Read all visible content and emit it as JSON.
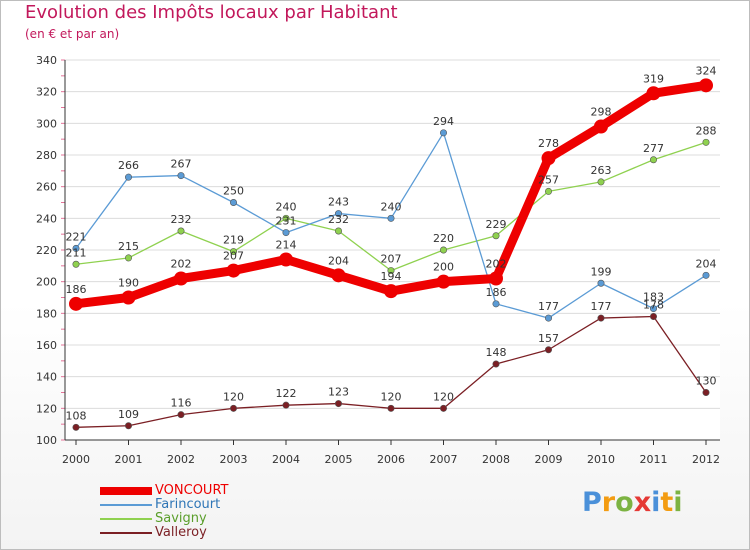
{
  "title": "Evolution des Impôts locaux par Habitant",
  "subtitle": "(en € et par an)",
  "logo": {
    "letters": [
      {
        "ch": "P",
        "color": "#4a90d9"
      },
      {
        "ch": "r",
        "color": "#f39c12"
      },
      {
        "ch": "o",
        "color": "#7cb342"
      },
      {
        "ch": "x",
        "color": "#e53935"
      },
      {
        "ch": "i",
        "color": "#4a90d9"
      },
      {
        "ch": "t",
        "color": "#f39c12"
      },
      {
        "ch": "i",
        "color": "#7cb342"
      }
    ]
  },
  "chart_data": {
    "type": "line",
    "title": "Evolution des Impôts locaux par Habitant",
    "subtitle": "(en € et par an)",
    "xlabel": "",
    "ylabel": "",
    "x": [
      "2000",
      "2001",
      "2002",
      "2003",
      "2004",
      "2005",
      "2006",
      "2007",
      "2008",
      "2009",
      "2010",
      "2011",
      "2012"
    ],
    "ylim": [
      100,
      340
    ],
    "yticks": [
      100,
      120,
      140,
      160,
      180,
      200,
      220,
      240,
      260,
      280,
      300,
      320,
      340
    ],
    "grid": "horizontal",
    "legend": "bottom-left",
    "series": [
      {
        "name": "Valleroy",
        "color": "#7b1f24",
        "values": [
          108,
          109,
          116,
          120,
          122,
          123,
          120,
          120,
          148,
          157,
          177,
          178,
          130
        ]
      },
      {
        "name": "Savigny",
        "color": "#8fd14f",
        "values": [
          211,
          215,
          232,
          219,
          240,
          232,
          207,
          220,
          229,
          257,
          263,
          277,
          288
        ]
      },
      {
        "name": "Farincourt",
        "color": "#5b9bd5",
        "values": [
          221,
          266,
          267,
          250,
          231,
          243,
          240,
          294,
          186,
          177,
          199,
          183,
          204
        ]
      },
      {
        "name": "VONCOURT",
        "color": "#ee0000",
        "values": [
          186,
          190,
          202,
          207,
          214,
          204,
          194,
          200,
          202,
          278,
          298,
          319,
          324
        ]
      }
    ],
    "data_labels": {
      "Valleroy": [
        "108",
        "109",
        "116",
        "120",
        "122",
        "123",
        "120",
        "120",
        "148",
        "157",
        "177",
        "178",
        "130"
      ],
      "Savigny": [
        "211",
        "215",
        "232",
        "219",
        "240",
        "232",
        "207",
        "220",
        "229",
        "257",
        "263",
        "277",
        "288"
      ],
      "Farincourt": [
        "221",
        "266",
        "267",
        "250",
        "231",
        "243",
        "240",
        "294",
        "186",
        "177",
        "199",
        "183",
        "204"
      ],
      "VONCOURT": [
        "186",
        "190",
        "202",
        "207",
        "214",
        "204",
        "194",
        "200",
        "202",
        "278",
        "298",
        "319",
        "324"
      ]
    },
    "legend_entries": [
      {
        "name": "VONCOURT",
        "color": "#ee0000",
        "text_color": "#ee0000"
      },
      {
        "name": "Farincourt",
        "color": "#5b9bd5",
        "text_color": "#2e75b6"
      },
      {
        "name": "Savigny",
        "color": "#8fd14f",
        "text_color": "#5a9e2a"
      },
      {
        "name": "Valleroy",
        "color": "#7b1f24",
        "text_color": "#7b1f24"
      }
    ]
  }
}
